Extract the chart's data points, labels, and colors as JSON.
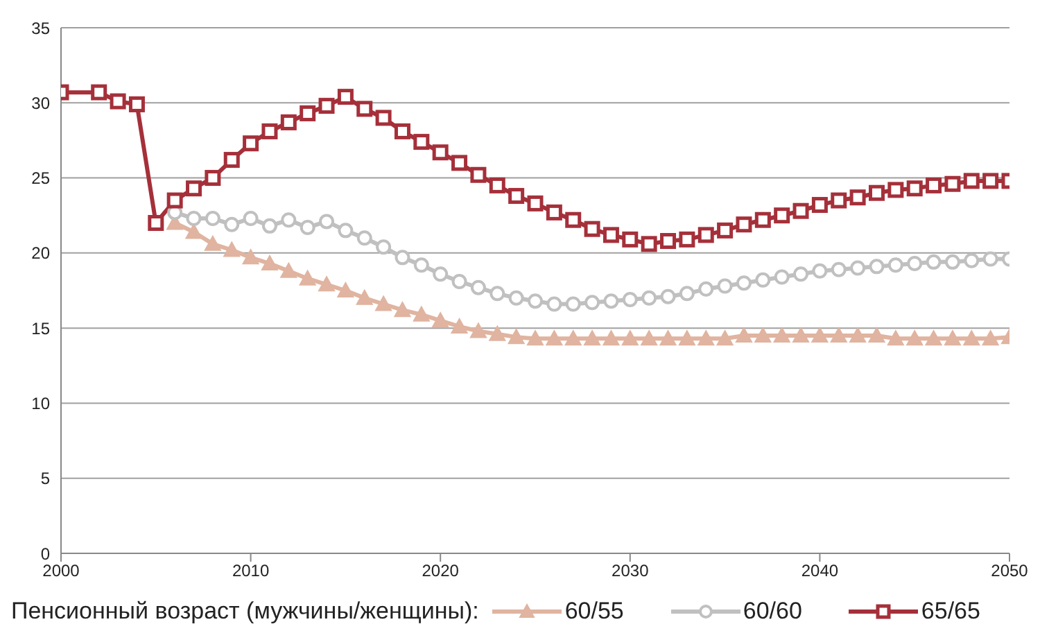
{
  "chart_data": {
    "type": "line",
    "x": [
      2000,
      2001,
      2002,
      2003,
      2004,
      2005,
      2006,
      2007,
      2008,
      2009,
      2010,
      2011,
      2012,
      2013,
      2014,
      2015,
      2016,
      2017,
      2018,
      2019,
      2020,
      2021,
      2022,
      2023,
      2024,
      2025,
      2026,
      2027,
      2028,
      2029,
      2030,
      2031,
      2032,
      2033,
      2034,
      2035,
      2036,
      2037,
      2038,
      2039,
      2040,
      2041,
      2042,
      2043,
      2044,
      2045,
      2046,
      2047,
      2048,
      2049,
      2050
    ],
    "series": [
      {
        "name": "60/55",
        "color": "#e0b4a0",
        "marker": "triangle",
        "values": [
          null,
          null,
          null,
          null,
          null,
          null,
          22.0,
          21.4,
          20.6,
          20.2,
          19.7,
          19.3,
          18.8,
          18.3,
          17.9,
          17.5,
          17.0,
          16.6,
          16.2,
          15.9,
          15.5,
          15.1,
          14.8,
          14.6,
          14.4,
          14.3,
          14.3,
          14.3,
          14.3,
          14.3,
          14.3,
          14.3,
          14.3,
          14.3,
          14.3,
          14.3,
          14.5,
          14.5,
          14.5,
          14.5,
          14.5,
          14.5,
          14.5,
          14.5,
          14.3,
          14.3,
          14.3,
          14.3,
          14.3,
          14.3,
          14.4
        ]
      },
      {
        "name": "60/60",
        "color": "#c0c0c0",
        "marker": "circle",
        "values": [
          null,
          null,
          null,
          null,
          null,
          null,
          22.7,
          22.3,
          22.3,
          21.9,
          22.3,
          21.8,
          22.2,
          21.7,
          22.1,
          21.5,
          21.0,
          20.4,
          19.7,
          19.2,
          18.6,
          18.1,
          17.7,
          17.3,
          17.0,
          16.8,
          16.6,
          16.6,
          16.7,
          16.8,
          16.9,
          17.0,
          17.1,
          17.3,
          17.6,
          17.8,
          18.0,
          18.2,
          18.4,
          18.6,
          18.8,
          18.9,
          19.0,
          19.1,
          19.2,
          19.3,
          19.4,
          19.4,
          19.5,
          19.6,
          19.6
        ]
      },
      {
        "name": "65/65",
        "color": "#a5303a",
        "marker": "square",
        "values": [
          30.7,
          null,
          30.7,
          30.1,
          29.9,
          22.0,
          23.5,
          24.3,
          25.0,
          26.2,
          27.3,
          28.1,
          28.7,
          29.3,
          29.8,
          30.4,
          29.6,
          29.0,
          28.1,
          27.4,
          26.7,
          26.0,
          25.2,
          24.5,
          23.8,
          23.3,
          22.7,
          22.2,
          21.6,
          21.2,
          20.9,
          20.6,
          20.8,
          20.9,
          21.2,
          21.5,
          21.9,
          22.2,
          22.5,
          22.8,
          23.2,
          23.5,
          23.7,
          24.0,
          24.2,
          24.3,
          24.5,
          24.6,
          24.8,
          24.8,
          24.8
        ]
      }
    ],
    "xlim": [
      2000,
      2050
    ],
    "xticks": [
      2000,
      2010,
      2020,
      2030,
      2040,
      2050
    ],
    "ylim": [
      0,
      35
    ],
    "yticks": [
      0,
      5,
      10,
      15,
      20,
      25,
      30,
      35
    ],
    "grid": "y",
    "legend": "bottom",
    "legend_title": "Пенсионный возраст (мужчины/женщины):"
  }
}
